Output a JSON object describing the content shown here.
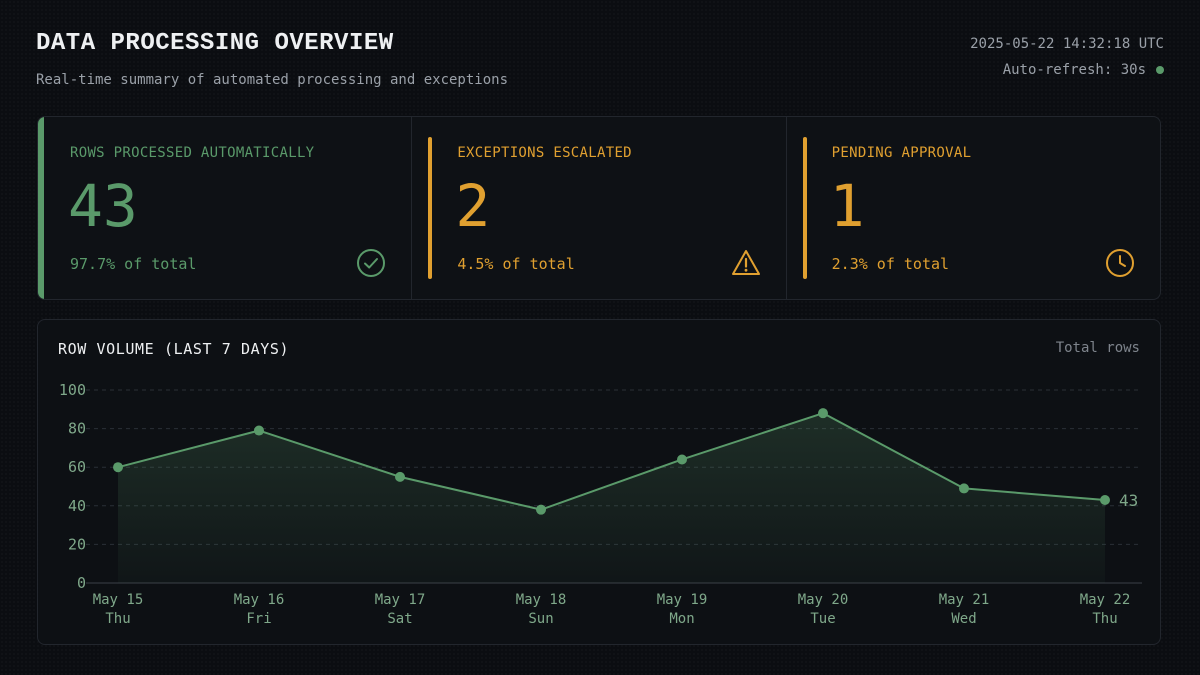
{
  "header": {
    "title": "DATA PROCESSING OVERVIEW",
    "subtitle": "Real-time summary of automated processing and exceptions",
    "timestamp": "2025-05-22 14:32:18 UTC",
    "refresh": "Auto-refresh: 30s"
  },
  "kpis": [
    {
      "label": "ROWS PROCESSED AUTOMATICALLY",
      "value": "43",
      "pct": "97.7% of total",
      "icon": "check-circle-icon",
      "color": "#5a9a6a"
    },
    {
      "label": "EXCEPTIONS ESCALATED",
      "value": "2",
      "pct": "4.5% of total",
      "icon": "warning-triangle-icon",
      "color": "#e0a030"
    },
    {
      "label": "PENDING APPROVAL",
      "value": "1",
      "pct": "2.3% of total",
      "icon": "clock-icon",
      "color": "#e0a030"
    }
  ],
  "chart_panel": {
    "title": "ROW VOLUME (LAST 7 DAYS)",
    "legend": "Total rows"
  },
  "chart_data": {
    "type": "area",
    "title": "ROW VOLUME (LAST 7 DAYS)",
    "categories": [
      "May 15",
      "May 16",
      "May 17",
      "May 18",
      "May 19",
      "May 20",
      "May 21",
      "May 22"
    ],
    "weekdays": [
      "Thu",
      "Fri",
      "Sat",
      "Sun",
      "Mon",
      "Tue",
      "Wed",
      "Thu"
    ],
    "series": [
      {
        "name": "Total rows",
        "values": [
          60,
          79,
          55,
          38,
          64,
          88,
          49,
          43
        ]
      }
    ],
    "last_value_label": "43",
    "ylim": [
      0,
      100
    ],
    "yticks": [
      0,
      20,
      40,
      60,
      80,
      100
    ],
    "grid": true,
    "line_color": "#5a9a6a"
  }
}
